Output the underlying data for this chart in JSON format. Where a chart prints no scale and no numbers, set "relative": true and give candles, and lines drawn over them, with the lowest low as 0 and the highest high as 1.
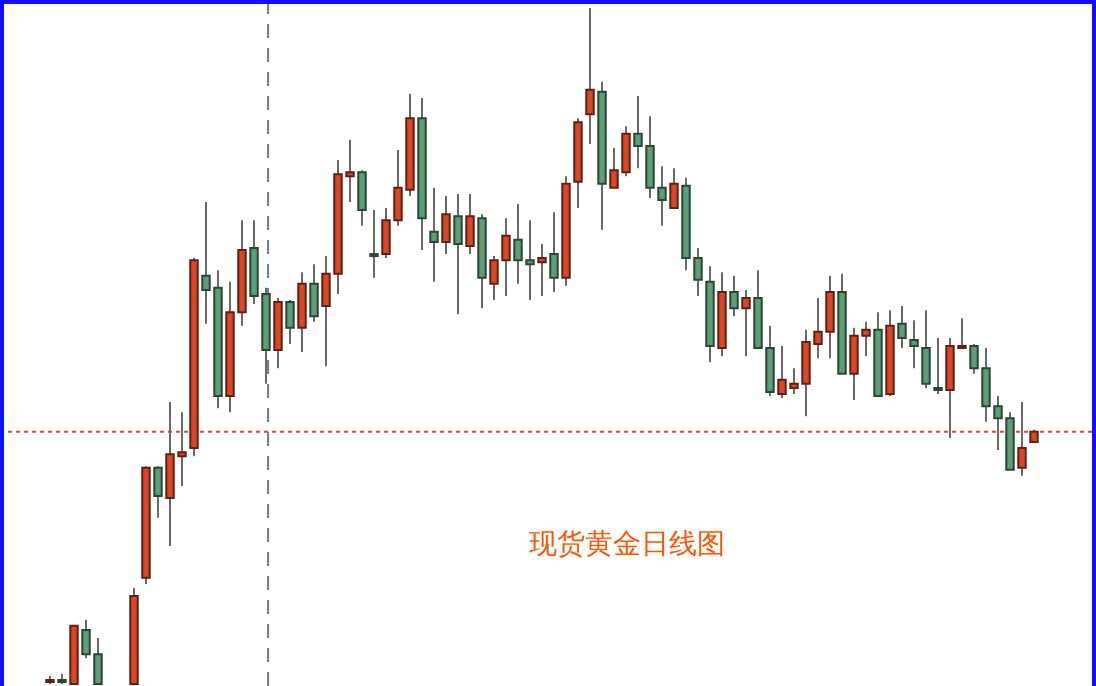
{
  "chart_data": {
    "type": "candlestick",
    "relative": true,
    "annotations": [
      "现货黄金日线图"
    ],
    "ref_lines": [
      {
        "axis": "y",
        "value": 0.373,
        "color": "#e8452c",
        "line_style": "dotted"
      }
    ],
    "categories": [
      null,
      null,
      null,
      null,
      null,
      null,
      null,
      null,
      null,
      null,
      null,
      null,
      null,
      null,
      null,
      null,
      null,
      null,
      null,
      null,
      null,
      null,
      null,
      null,
      null,
      null,
      null,
      null,
      null,
      null,
      null,
      null,
      null,
      null,
      null,
      null,
      null,
      null,
      null,
      null,
      null,
      null,
      null,
      null,
      null,
      null,
      null,
      null,
      null,
      null,
      null,
      null,
      null,
      null,
      null,
      null,
      null,
      null,
      null,
      null,
      null,
      null,
      null,
      null,
      null,
      null,
      null,
      null,
      null,
      null,
      null,
      null,
      null,
      null,
      null,
      null,
      null,
      null,
      null,
      null,
      null,
      null,
      null
    ],
    "ohlc": [
      [
        0.003,
        0.012,
        0,
        0.006
      ],
      [
        0.006,
        0.015,
        0,
        0.003
      ],
      [
        0,
        0.086,
        0,
        0.086
      ],
      [
        0.08,
        0.095,
        0.038,
        0.044
      ],
      [
        0.044,
        0.068,
        0,
        0
      ],
      null,
      null,
      [
        0,
        0.142,
        0,
        0.13
      ],
      [
        0.157,
        0.322,
        0.148,
        0.32
      ],
      [
        0.32,
        0.322,
        0.246,
        0.278
      ],
      [
        0.275,
        0.417,
        0.204,
        0.34
      ],
      [
        0.337,
        0.402,
        0.293,
        0.343
      ],
      [
        0.349,
        0.63,
        0.337,
        0.627
      ],
      [
        0.604,
        0.713,
        0.533,
        0.583
      ],
      [
        0.586,
        0.612,
        0.408,
        0.426
      ],
      [
        0.426,
        0.595,
        0.402,
        0.55
      ],
      [
        0.55,
        0.686,
        0.53,
        0.642
      ],
      [
        0.645,
        0.686,
        0.562,
        0.574
      ],
      [
        0.577,
        0.586,
        0.444,
        0.494
      ],
      [
        0.494,
        0.571,
        0.467,
        0.565
      ],
      [
        0.565,
        0.568,
        0.503,
        0.527
      ],
      [
        0.527,
        0.609,
        0.491,
        0.592
      ],
      [
        0.592,
        0.621,
        0.536,
        0.544
      ],
      [
        0.559,
        0.633,
        0.47,
        0.607
      ],
      [
        0.607,
        0.775,
        0.577,
        0.754
      ],
      [
        0.751,
        0.805,
        0.713,
        0.757
      ],
      [
        0.757,
        0.76,
        0.678,
        0.701
      ],
      [
        0.636,
        0.701,
        0.601,
        0.636
      ],
      [
        0.636,
        0.704,
        0.63,
        0.686
      ],
      [
        0.686,
        0.79,
        0.678,
        0.734
      ],
      [
        0.731,
        0.873,
        0.722,
        0.837
      ],
      [
        0.837,
        0.867,
        0.642,
        0.689
      ],
      [
        0.669,
        0.734,
        0.595,
        0.654
      ],
      [
        0.654,
        0.722,
        0.636,
        0.695
      ],
      [
        0.692,
        0.725,
        0.547,
        0.651
      ],
      [
        0.648,
        0.725,
        0.636,
        0.692
      ],
      [
        0.689,
        0.695,
        0.556,
        0.601
      ],
      [
        0.592,
        0.633,
        0.568,
        0.627
      ],
      [
        0.627,
        0.689,
        0.574,
        0.663
      ],
      [
        0.657,
        0.71,
        0.592,
        0.627
      ],
      [
        0.627,
        0.686,
        0.568,
        0.621
      ],
      [
        0.624,
        0.651,
        0.574,
        0.63
      ],
      [
        0.636,
        0.698,
        0.58,
        0.601
      ],
      [
        0.601,
        0.751,
        0.589,
        0.74
      ],
      [
        0.743,
        0.837,
        0.704,
        0.831
      ],
      [
        0.843,
        1,
        0.799,
        0.879
      ],
      [
        0.876,
        0.891,
        0.672,
        0.74
      ],
      [
        0.734,
        0.793,
        0.734,
        0.76
      ],
      [
        0.757,
        0.825,
        0.751,
        0.814
      ],
      [
        0.814,
        0.87,
        0.763,
        0.796
      ],
      [
        0.796,
        0.84,
        0.719,
        0.734
      ],
      [
        0.734,
        0.766,
        0.678,
        0.716
      ],
      [
        0.704,
        0.763,
        0.704,
        0.74
      ],
      [
        0.737,
        0.749,
        0.612,
        0.63
      ],
      [
        0.63,
        0.645,
        0.574,
        0.598
      ],
      [
        0.595,
        0.618,
        0.476,
        0.5
      ],
      [
        0.497,
        0.609,
        0.485,
        0.58
      ],
      [
        0.58,
        0.604,
        0.544,
        0.556
      ],
      [
        0.556,
        0.583,
        0.485,
        0.571
      ],
      [
        0.571,
        0.612,
        0.497,
        0.497
      ],
      [
        0.497,
        0.53,
        0.426,
        0.432
      ],
      [
        0.429,
        0.5,
        0.423,
        0.45
      ],
      [
        0.438,
        0.467,
        0.429,
        0.444
      ],
      [
        0.444,
        0.524,
        0.396,
        0.506
      ],
      [
        0.503,
        0.571,
        0.482,
        0.521
      ],
      [
        0.521,
        0.604,
        0.482,
        0.58
      ],
      [
        0.58,
        0.607,
        0.459,
        0.459
      ],
      [
        0.459,
        0.527,
        0.42,
        0.515
      ],
      [
        0.515,
        0.536,
        0.485,
        0.524
      ],
      [
        0.524,
        0.55,
        0.426,
        0.426
      ],
      [
        0.429,
        0.553,
        0.426,
        0.53
      ],
      [
        0.533,
        0.559,
        0.497,
        0.512
      ],
      [
        0.509,
        0.538,
        0.467,
        0.5
      ],
      [
        0.497,
        0.553,
        0.438,
        0.444
      ],
      [
        0.438,
        0.512,
        0.429,
        0.435
      ],
      [
        0.435,
        0.512,
        0.364,
        0.5
      ],
      [
        0.5,
        0.541,
        0.497,
        0.5
      ],
      [
        0.5,
        0.503,
        0.459,
        0.467
      ],
      [
        0.467,
        0.497,
        0.388,
        0.411
      ],
      [
        0.411,
        0.426,
        0.346,
        0.393
      ],
      [
        0.393,
        0.402,
        0.317,
        0.317
      ],
      [
        0.32,
        0.417,
        0.308,
        0.349
      ],
      [
        0.358,
        0.376,
        0.358,
        0.373
      ]
    ],
    "colors": [
      "#d9472b",
      "#5d9e76",
      "#d9472b",
      "#5d9e76",
      "#5d9e76",
      null,
      null,
      "#d9472b",
      "#d9472b",
      "#5d9e76",
      "#d9472b",
      "#d9472b",
      "#d9472b",
      "#5d9e76",
      "#5d9e76",
      "#d9472b",
      "#d9472b",
      "#5d9e76",
      "#5d9e76",
      "#d9472b",
      "#5d9e76",
      "#d9472b",
      "#5d9e76",
      "#d9472b",
      "#d9472b",
      "#d9472b",
      "#5d9e76",
      "#5d9e76",
      "#d9472b",
      "#d9472b",
      "#d9472b",
      "#5d9e76",
      "#5d9e76",
      "#d9472b",
      "#5d9e76",
      "#d9472b",
      "#5d9e76",
      "#d9472b",
      "#d9472b",
      "#5d9e76",
      "#5d9e76",
      "#d9472b",
      "#5d9e76",
      "#d9472b",
      "#d9472b",
      "#d9472b",
      "#5d9e76",
      "#d9472b",
      "#d9472b",
      "#5d9e76",
      "#5d9e76",
      "#5d9e76",
      "#d9472b",
      "#5d9e76",
      "#5d9e76",
      "#5d9e76",
      "#d9472b",
      "#5d9e76",
      "#d9472b",
      "#5d9e76",
      "#5d9e76",
      "#d9472b",
      "#d9472b",
      "#d9472b",
      "#d9472b",
      "#d9472b",
      "#5d9e76",
      "#d9472b",
      "#d9472b",
      "#5d9e76",
      "#d9472b",
      "#5d9e76",
      "#5d9e76",
      "#5d9e76",
      "#5d9e76",
      "#d9472b",
      "#d9472b",
      "#5d9e76",
      "#5d9e76",
      "#5d9e76",
      "#5d9e76",
      "#d9472b",
      "#d9472b"
    ]
  }
}
